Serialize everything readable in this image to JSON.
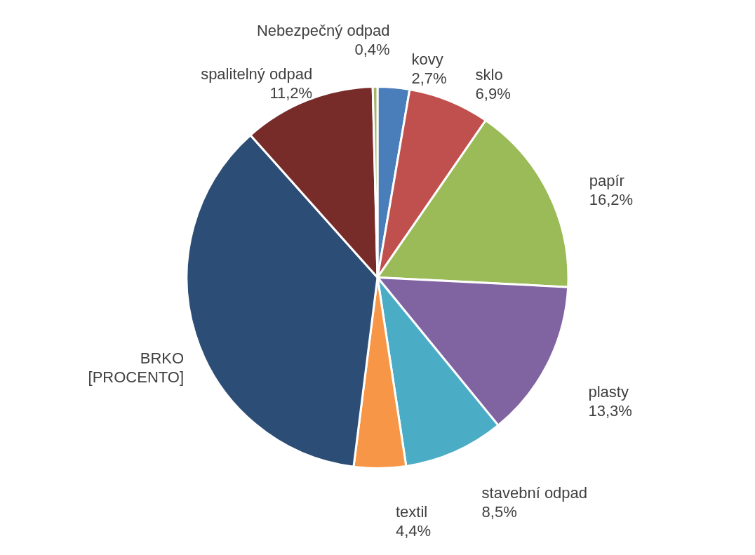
{
  "chart_data": {
    "type": "pie",
    "categories": [
      "kovy",
      "sklo",
      "papír",
      "plasty",
      "stavební odpad",
      "textil",
      "BRKO",
      "spalitelný odpad",
      "Nebezpečný odpad"
    ],
    "values": [
      2.7,
      6.9,
      16.2,
      13.3,
      8.5,
      4.4,
      36.4,
      11.2,
      0.4
    ],
    "value_labels": [
      "2,7%",
      "6,9%",
      "16,2%",
      "13,3%",
      "8,5%",
      "4,4%",
      "[PROCENTO]",
      "11,2%",
      "0,4%"
    ],
    "colors": [
      "#4a7ebb",
      "#c0504d",
      "#9bbb59",
      "#8064a2",
      "#4bacc6",
      "#f79646",
      "#2c4d75",
      "#772c2a",
      "#a5b56d"
    ]
  }
}
